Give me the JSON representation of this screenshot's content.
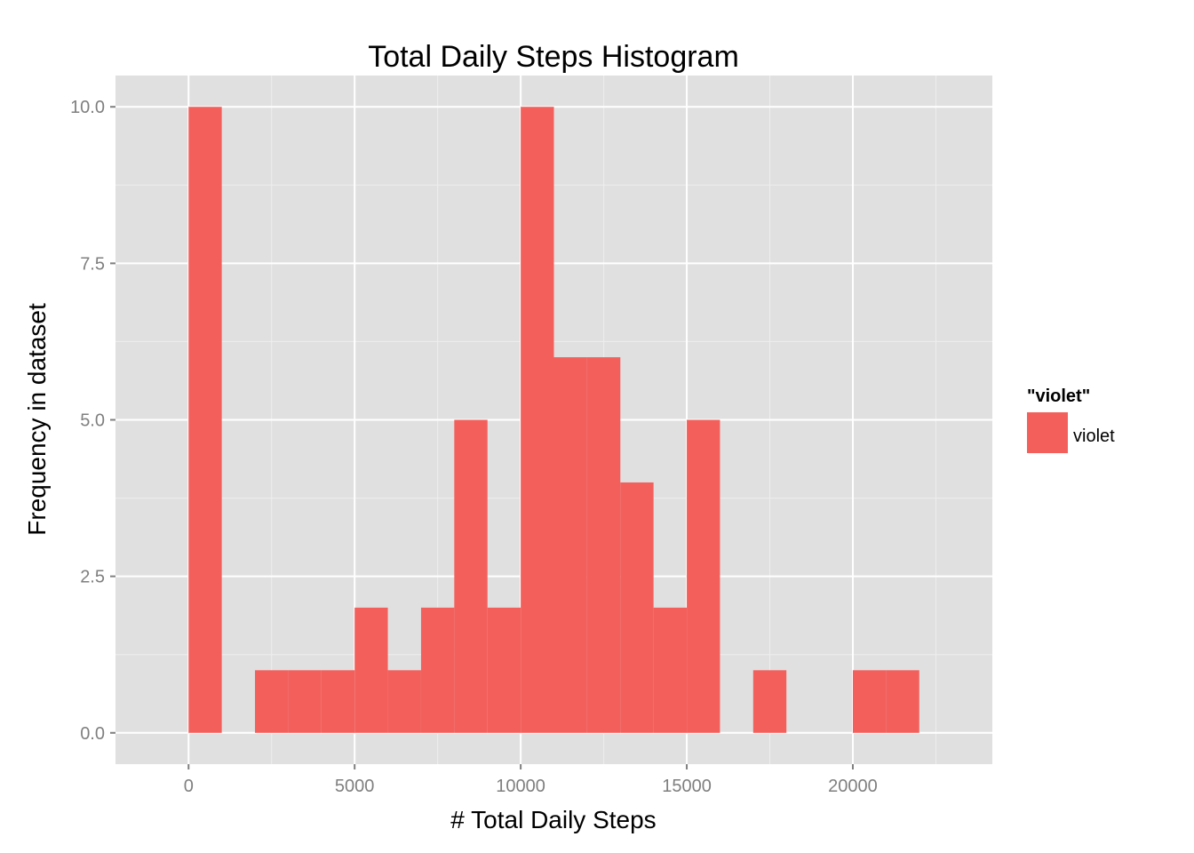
{
  "chart_data": {
    "type": "bar",
    "title": "Total Daily Steps Histogram",
    "xlabel": "# Total Daily Steps",
    "ylabel": "Frequency in dataset",
    "bin_width": 1000,
    "bins": [
      {
        "start": 0,
        "count": 10
      },
      {
        "start": 1000,
        "count": 0
      },
      {
        "start": 2000,
        "count": 1
      },
      {
        "start": 3000,
        "count": 1
      },
      {
        "start": 4000,
        "count": 1
      },
      {
        "start": 5000,
        "count": 2
      },
      {
        "start": 6000,
        "count": 1
      },
      {
        "start": 7000,
        "count": 2
      },
      {
        "start": 8000,
        "count": 5
      },
      {
        "start": 9000,
        "count": 2
      },
      {
        "start": 10000,
        "count": 10
      },
      {
        "start": 11000,
        "count": 6
      },
      {
        "start": 12000,
        "count": 6
      },
      {
        "start": 13000,
        "count": 4
      },
      {
        "start": 14000,
        "count": 2
      },
      {
        "start": 15000,
        "count": 5
      },
      {
        "start": 16000,
        "count": 0
      },
      {
        "start": 17000,
        "count": 1
      },
      {
        "start": 18000,
        "count": 0
      },
      {
        "start": 19000,
        "count": 0
      },
      {
        "start": 20000,
        "count": 1
      },
      {
        "start": 21000,
        "count": 1
      }
    ],
    "xlim": [
      -2200,
      24200
    ],
    "ylim": [
      -0.5,
      10.5
    ],
    "x_ticks": [
      0,
      5000,
      10000,
      15000,
      20000
    ],
    "x_tick_labels": [
      "0",
      "5000",
      "10000",
      "15000",
      "20000"
    ],
    "y_ticks": [
      0,
      2.5,
      5,
      7.5,
      10
    ],
    "y_tick_labels": [
      "0.0",
      "2.5",
      "5.0",
      "7.5",
      "10.0"
    ],
    "grid": true,
    "legend": {
      "title": "\"violet\"",
      "entries": [
        {
          "label": "violet",
          "color": "#F3605C"
        }
      ],
      "position": "right"
    },
    "colors": {
      "bar": "#F3605C",
      "panel": "#E0E0E0",
      "grid_major": "#FFFFFF",
      "grid_minor": "#EEEEEE"
    }
  }
}
